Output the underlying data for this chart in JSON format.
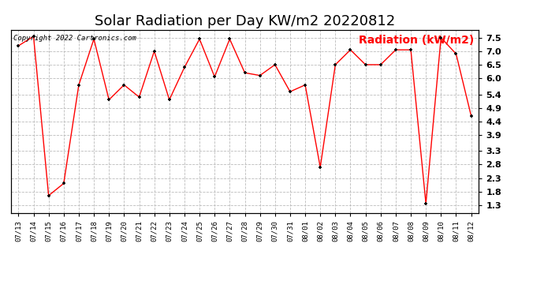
{
  "title": "Solar Radiation per Day KW/m2 20220812",
  "copyright_text": "Copyright 2022 Cartronics.com",
  "ylabel": "Radiation (kW/m2)",
  "ylabel_color": "red",
  "background_color": "#ffffff",
  "line_color": "red",
  "marker_color": "black",
  "dates": [
    "07/13",
    "07/14",
    "07/15",
    "07/16",
    "07/17",
    "07/18",
    "07/19",
    "07/20",
    "07/21",
    "07/22",
    "07/23",
    "07/24",
    "07/25",
    "07/26",
    "07/27",
    "07/28",
    "07/29",
    "07/30",
    "07/31",
    "08/01",
    "08/02",
    "08/03",
    "08/04",
    "08/05",
    "08/06",
    "08/07",
    "08/08",
    "08/09",
    "08/10",
    "08/11",
    "08/12"
  ],
  "values": [
    7.2,
    7.55,
    1.65,
    2.1,
    5.75,
    7.45,
    5.2,
    5.75,
    5.3,
    7.0,
    5.2,
    6.4,
    7.45,
    6.05,
    7.45,
    6.2,
    6.1,
    6.5,
    5.5,
    5.75,
    2.7,
    6.5,
    7.05,
    6.5,
    6.5,
    7.05,
    7.05,
    1.35,
    7.5,
    6.9,
    4.6
  ],
  "yticks": [
    1.3,
    1.8,
    2.3,
    2.8,
    3.3,
    3.9,
    4.4,
    4.9,
    5.4,
    6.0,
    6.5,
    7.0,
    7.5
  ],
  "ylim": [
    1.0,
    7.8
  ],
  "grid_color": "#bbbbbb",
  "title_fontsize": 13,
  "tick_fontsize": 8,
  "ylabel_fontsize": 10
}
